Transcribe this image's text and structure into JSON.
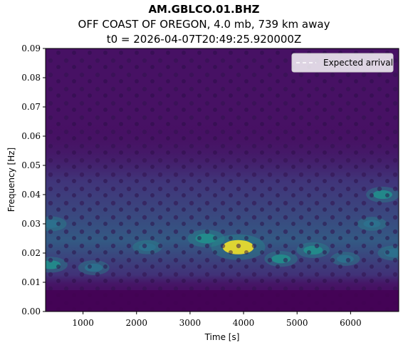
{
  "header": {
    "station": "AM.GBLCO.01.BHZ",
    "event": "OFF COAST OF OREGON, 4.0 mb, 739 km away",
    "origin_time": "t0 = 2026-04-07T20:49:25.920000Z"
  },
  "chart_data": {
    "type": "heatmap",
    "colormap": "viridis",
    "xlabel": "Time [s]",
    "ylabel": "Frequency [Hz]",
    "xlim": [
      300,
      6900
    ],
    "ylim": [
      0.0,
      0.09
    ],
    "x_ticks": [
      1000,
      2000,
      3000,
      4000,
      5000,
      6000
    ],
    "x_tick_labels": [
      "1000",
      "2000",
      "3000",
      "4000",
      "5000",
      "6000"
    ],
    "y_ticks": [
      0.0,
      0.01,
      0.02,
      0.03,
      0.04,
      0.05,
      0.06,
      0.07,
      0.08,
      0.09
    ],
    "y_tick_labels": [
      "0.00",
      "0.01",
      "0.02",
      "0.03",
      "0.04",
      "0.05",
      "0.06",
      "0.07",
      "0.08",
      "0.09"
    ],
    "legend": {
      "position": "top-right",
      "entries": [
        {
          "label": "Expected arrival",
          "style": "dashed",
          "color": "#ffffff"
        }
      ]
    },
    "energy_features": [
      {
        "time": 3900,
        "frequency": 0.022,
        "level": 1.0
      },
      {
        "time": 3300,
        "frequency": 0.025,
        "level": 0.55
      },
      {
        "time": 5300,
        "frequency": 0.021,
        "level": 0.45
      },
      {
        "time": 4700,
        "frequency": 0.018,
        "level": 0.45
      },
      {
        "time": 6600,
        "frequency": 0.04,
        "level": 0.45
      },
      {
        "time": 1200,
        "frequency": 0.015,
        "level": 0.4
      },
      {
        "time": 400,
        "frequency": 0.016,
        "level": 0.45
      },
      {
        "time": 400,
        "frequency": 0.03,
        "level": 0.4
      },
      {
        "time": 6400,
        "frequency": 0.03,
        "level": 0.35
      },
      {
        "time": 2200,
        "frequency": 0.022,
        "level": 0.35
      },
      {
        "time": 6800,
        "frequency": 0.02,
        "level": 0.4
      },
      {
        "time": 5900,
        "frequency": 0.018,
        "level": 0.35
      }
    ]
  }
}
